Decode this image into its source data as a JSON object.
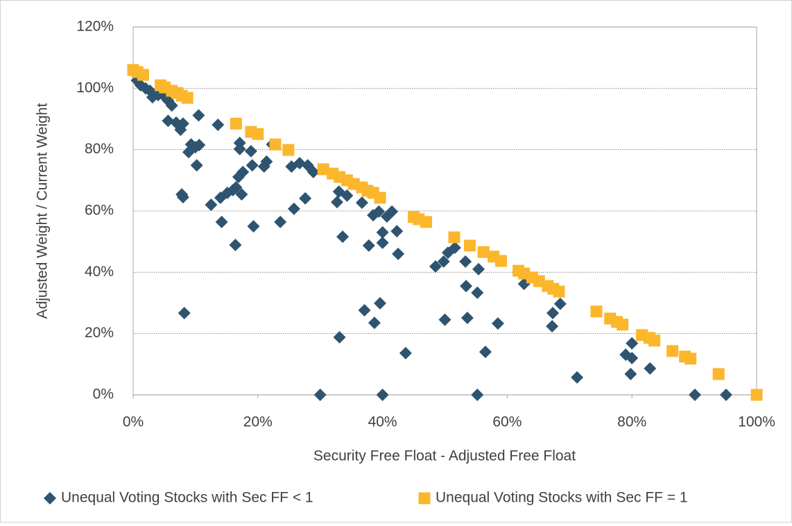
{
  "chart_data": {
    "type": "scatter",
    "x_label": "Security Free Float - Adjusted Free Float",
    "y_label": "Adjusted Weight / Current Weight",
    "xlim": [
      0,
      100
    ],
    "ylim": [
      0,
      120
    ],
    "xticks": [
      {
        "value": 0,
        "label": "0%"
      },
      {
        "value": 20,
        "label": "20%"
      },
      {
        "value": 40,
        "label": "40%"
      },
      {
        "value": 60,
        "label": "60%"
      },
      {
        "value": 80,
        "label": "80%"
      },
      {
        "value": 100,
        "label": "100%"
      }
    ],
    "yticks": [
      {
        "value": 0,
        "label": "0%"
      },
      {
        "value": 20,
        "label": "20%"
      },
      {
        "value": 40,
        "label": "40%"
      },
      {
        "value": 60,
        "label": "60%"
      },
      {
        "value": 80,
        "label": "80%"
      },
      {
        "value": 100,
        "label": "100%"
      },
      {
        "value": 120,
        "label": "120%"
      }
    ],
    "grid": true,
    "legend": "bottom",
    "series": [
      {
        "name": "Unequal Voting Stocks with Sec FF < 1",
        "color": "#2e5470",
        "marker": "diamond",
        "x": [
          0.6,
          1.2,
          2,
          2.7,
          3.1,
          4,
          4.9,
          5.6,
          6.2,
          5.6,
          6.9,
          7.6,
          8,
          10.5,
          8.9,
          9.3,
          10,
          10.6,
          10.2,
          7.8,
          8,
          8.2,
          12.5,
          13.6,
          14,
          14.2,
          15.1,
          16,
          16.5,
          16.4,
          16.9,
          17.6,
          17.4,
          17.1,
          17.1,
          18.9,
          19.1,
          19.3,
          21,
          21.4,
          22.3,
          23.6,
          25.4,
          25.8,
          26.7,
          28,
          27.6,
          28.9,
          30,
          32.7,
          33,
          33.1,
          33.6,
          34.3,
          36.7,
          37.1,
          37.8,
          38.7,
          38.5,
          39.4,
          39.6,
          40,
          40,
          40,
          40.7,
          41.5,
          42.3,
          42.5,
          43.7,
          48.5,
          49.8,
          50,
          50.5,
          51.6,
          53.3,
          53.4,
          53.6,
          55.2,
          55.4,
          55.2,
          56.5,
          58.5,
          62.7,
          67.2,
          67.3,
          68.5,
          71.2,
          79,
          79.8,
          80,
          80,
          82.9,
          90.1,
          95.1
        ],
        "values": [
          102.6,
          101,
          100,
          99.2,
          97.1,
          97.8,
          97.6,
          96,
          94.4,
          89.4,
          88.8,
          86.5,
          88.5,
          91.2,
          79.2,
          81.7,
          80.8,
          81.5,
          74.9,
          65.4,
          64.5,
          26.7,
          62,
          88.1,
          64.3,
          56.4,
          65.9,
          66.8,
          67.7,
          48.9,
          71.1,
          72.7,
          65.4,
          82.2,
          80.2,
          79.5,
          74.9,
          55,
          74.5,
          76.1,
          81.7,
          56.4,
          74.5,
          60.7,
          75.6,
          74.9,
          64.1,
          72.7,
          0,
          62.9,
          66.3,
          18.8,
          51.6,
          65,
          62.7,
          27.6,
          48.7,
          23.5,
          58.6,
          59.8,
          29.9,
          53,
          49.6,
          0,
          58.2,
          59.8,
          53.4,
          46,
          13.6,
          41.9,
          43.5,
          24.5,
          46.4,
          48,
          43.5,
          35.5,
          25.1,
          33.3,
          41,
          0,
          14,
          23.3,
          36.2,
          22.4,
          26.7,
          29.7,
          5.7,
          13.1,
          6.8,
          12,
          16.8,
          8.6,
          0,
          0
        ]
      },
      {
        "name": "Unequal Voting Stocks with Sec FF = 1",
        "color": "#fbb62c",
        "marker": "square",
        "x": [
          0,
          0.7,
          1.6,
          4.4,
          5.1,
          6.2,
          7.1,
          7.8,
          8.7,
          16.5,
          18.9,
          20,
          22.8,
          24.9,
          30.5,
          32,
          33.1,
          34.3,
          35.4,
          36.7,
          37.6,
          38.5,
          39.6,
          45,
          45.8,
          47,
          51.5,
          54,
          56.2,
          57.8,
          59,
          61.8,
          62.7,
          64,
          65.1,
          66.5,
          67.4,
          68.3,
          74.3,
          76.5,
          77.6,
          78.5,
          81.6,
          82.8,
          83.6,
          86.5,
          88.5,
          89.4,
          93.9,
          100
        ],
        "values": [
          106,
          105.3,
          104.4,
          101,
          100.3,
          99.2,
          98.5,
          97.6,
          96.9,
          88.5,
          85.8,
          85.1,
          81.7,
          79.9,
          73.6,
          72.2,
          71.1,
          70,
          68.8,
          67.7,
          66.6,
          65.9,
          64.3,
          58,
          57.3,
          56.4,
          51.4,
          48.7,
          46.6,
          45.1,
          43.7,
          40.5,
          39.6,
          38.3,
          37.1,
          35.5,
          34.6,
          33.7,
          27.2,
          24.9,
          23.8,
          22.9,
          19.5,
          18.6,
          17.7,
          14.3,
          12.5,
          11.8,
          6.8,
          0
        ]
      }
    ]
  }
}
